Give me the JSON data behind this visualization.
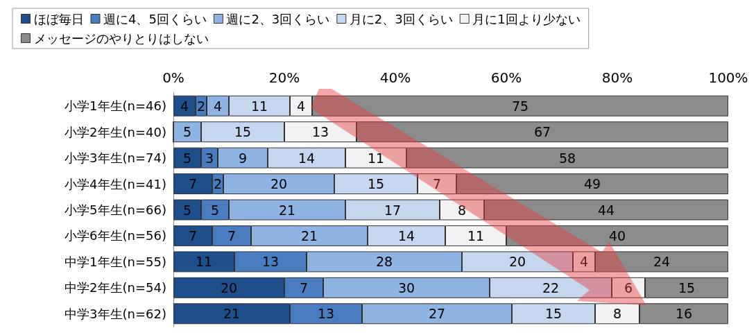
{
  "chart_data": {
    "type": "bar",
    "orientation": "horizontal",
    "stacked": true,
    "categories": [
      "小学1年生(n=46)",
      "小学2年生(n=40)",
      "小学3年生(n=74)",
      "小学4年生(n=41)",
      "小学5年生(n=66)",
      "小学6年生(n=56)",
      "中学1年生(n=55)",
      "中学2年生(n=54)",
      "中学3年生(n=62)"
    ],
    "series": [
      {
        "name": "ほぼ毎日",
        "color": "#1f4e8c",
        "values": [
          4,
          0,
          5,
          7,
          5,
          7,
          11,
          20,
          21
        ],
        "value_labels": [
          "4",
          null,
          "5",
          "7",
          "5",
          "7",
          "11",
          "20",
          "21"
        ]
      },
      {
        "name": "週に4、5回くらい",
        "color": "#4a7cc0",
        "values": [
          2,
          0,
          3,
          2,
          5,
          7,
          13,
          7,
          13
        ],
        "value_labels": [
          "2",
          null,
          "3",
          "2",
          "5",
          "7",
          "13",
          "7",
          "13"
        ]
      },
      {
        "name": "週に2、3回くらい",
        "color": "#8fb3e3",
        "values": [
          4,
          5,
          9,
          20,
          21,
          21,
          28,
          30,
          27
        ],
        "value_labels": [
          "4",
          "5",
          "9",
          "20",
          "21",
          "21",
          "28",
          "30",
          "27"
        ]
      },
      {
        "name": "月に2、3回くらい",
        "color": "#c5d6ef",
        "values": [
          11,
          15,
          14,
          15,
          17,
          14,
          20,
          22,
          15
        ],
        "value_labels": [
          "11",
          "15",
          "14",
          "15",
          "17",
          "14",
          "20",
          "22",
          "15"
        ]
      },
      {
        "name": "月に1回より少ない",
        "color": "#f2f2f2",
        "values": [
          4,
          13,
          11,
          7,
          8,
          11,
          4,
          6,
          8
        ],
        "value_labels": [
          "4",
          "13",
          "11",
          "7",
          "8",
          "11",
          "4",
          "6",
          "8"
        ]
      },
      {
        "name": "メッセージのやりとりはしない",
        "color": "#8c8c8c",
        "values": [
          75,
          67,
          58,
          49,
          44,
          40,
          24,
          15,
          16
        ],
        "value_labels": [
          "75",
          "67",
          "58",
          "49",
          "44",
          "40",
          "24",
          "15",
          "16"
        ]
      }
    ],
    "xlim": [
      0,
      100
    ],
    "xticks": [
      {
        "value": 0,
        "label": "0%"
      },
      {
        "value": 20,
        "label": "20%"
      },
      {
        "value": 40,
        "label": "40%"
      },
      {
        "value": 60,
        "label": "60%"
      },
      {
        "value": 80,
        "label": "80%"
      },
      {
        "value": 100,
        "label": "100%"
      }
    ],
    "grid": false,
    "legend": "top"
  }
}
